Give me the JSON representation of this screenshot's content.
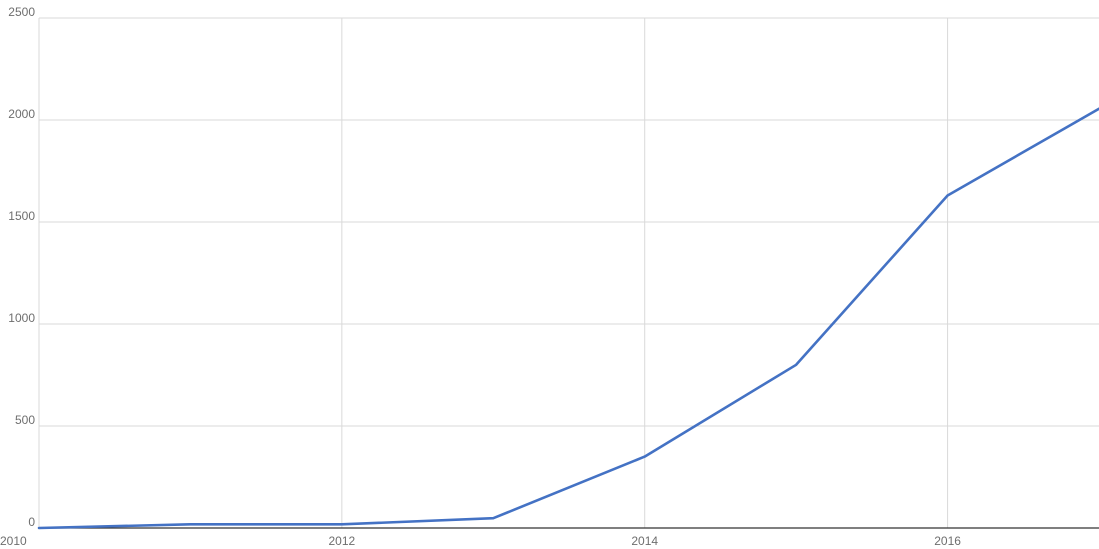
{
  "chart_data": {
    "type": "line",
    "title": "",
    "xlabel": "",
    "ylabel": "",
    "x": [
      2010,
      2011,
      2012,
      2013,
      2014,
      2015,
      2016,
      2017
    ],
    "series": [
      {
        "values": [
          0,
          18,
          18,
          48,
          350,
          800,
          1630,
          2055
        ],
        "color": "#4472c4"
      }
    ],
    "xlim": [
      2010,
      2017
    ],
    "ylim": [
      0,
      2500
    ],
    "x_ticks": [
      2010,
      2012,
      2014,
      2016
    ],
    "y_ticks": [
      0,
      500,
      1000,
      1500,
      2000,
      2500
    ],
    "x_tick_labels": [
      "2010",
      "2012",
      "2014",
      "2016"
    ],
    "y_tick_labels": [
      "0",
      "500",
      "1000",
      "1500",
      "2000",
      "2500"
    ],
    "grid": true,
    "legend": "none"
  }
}
